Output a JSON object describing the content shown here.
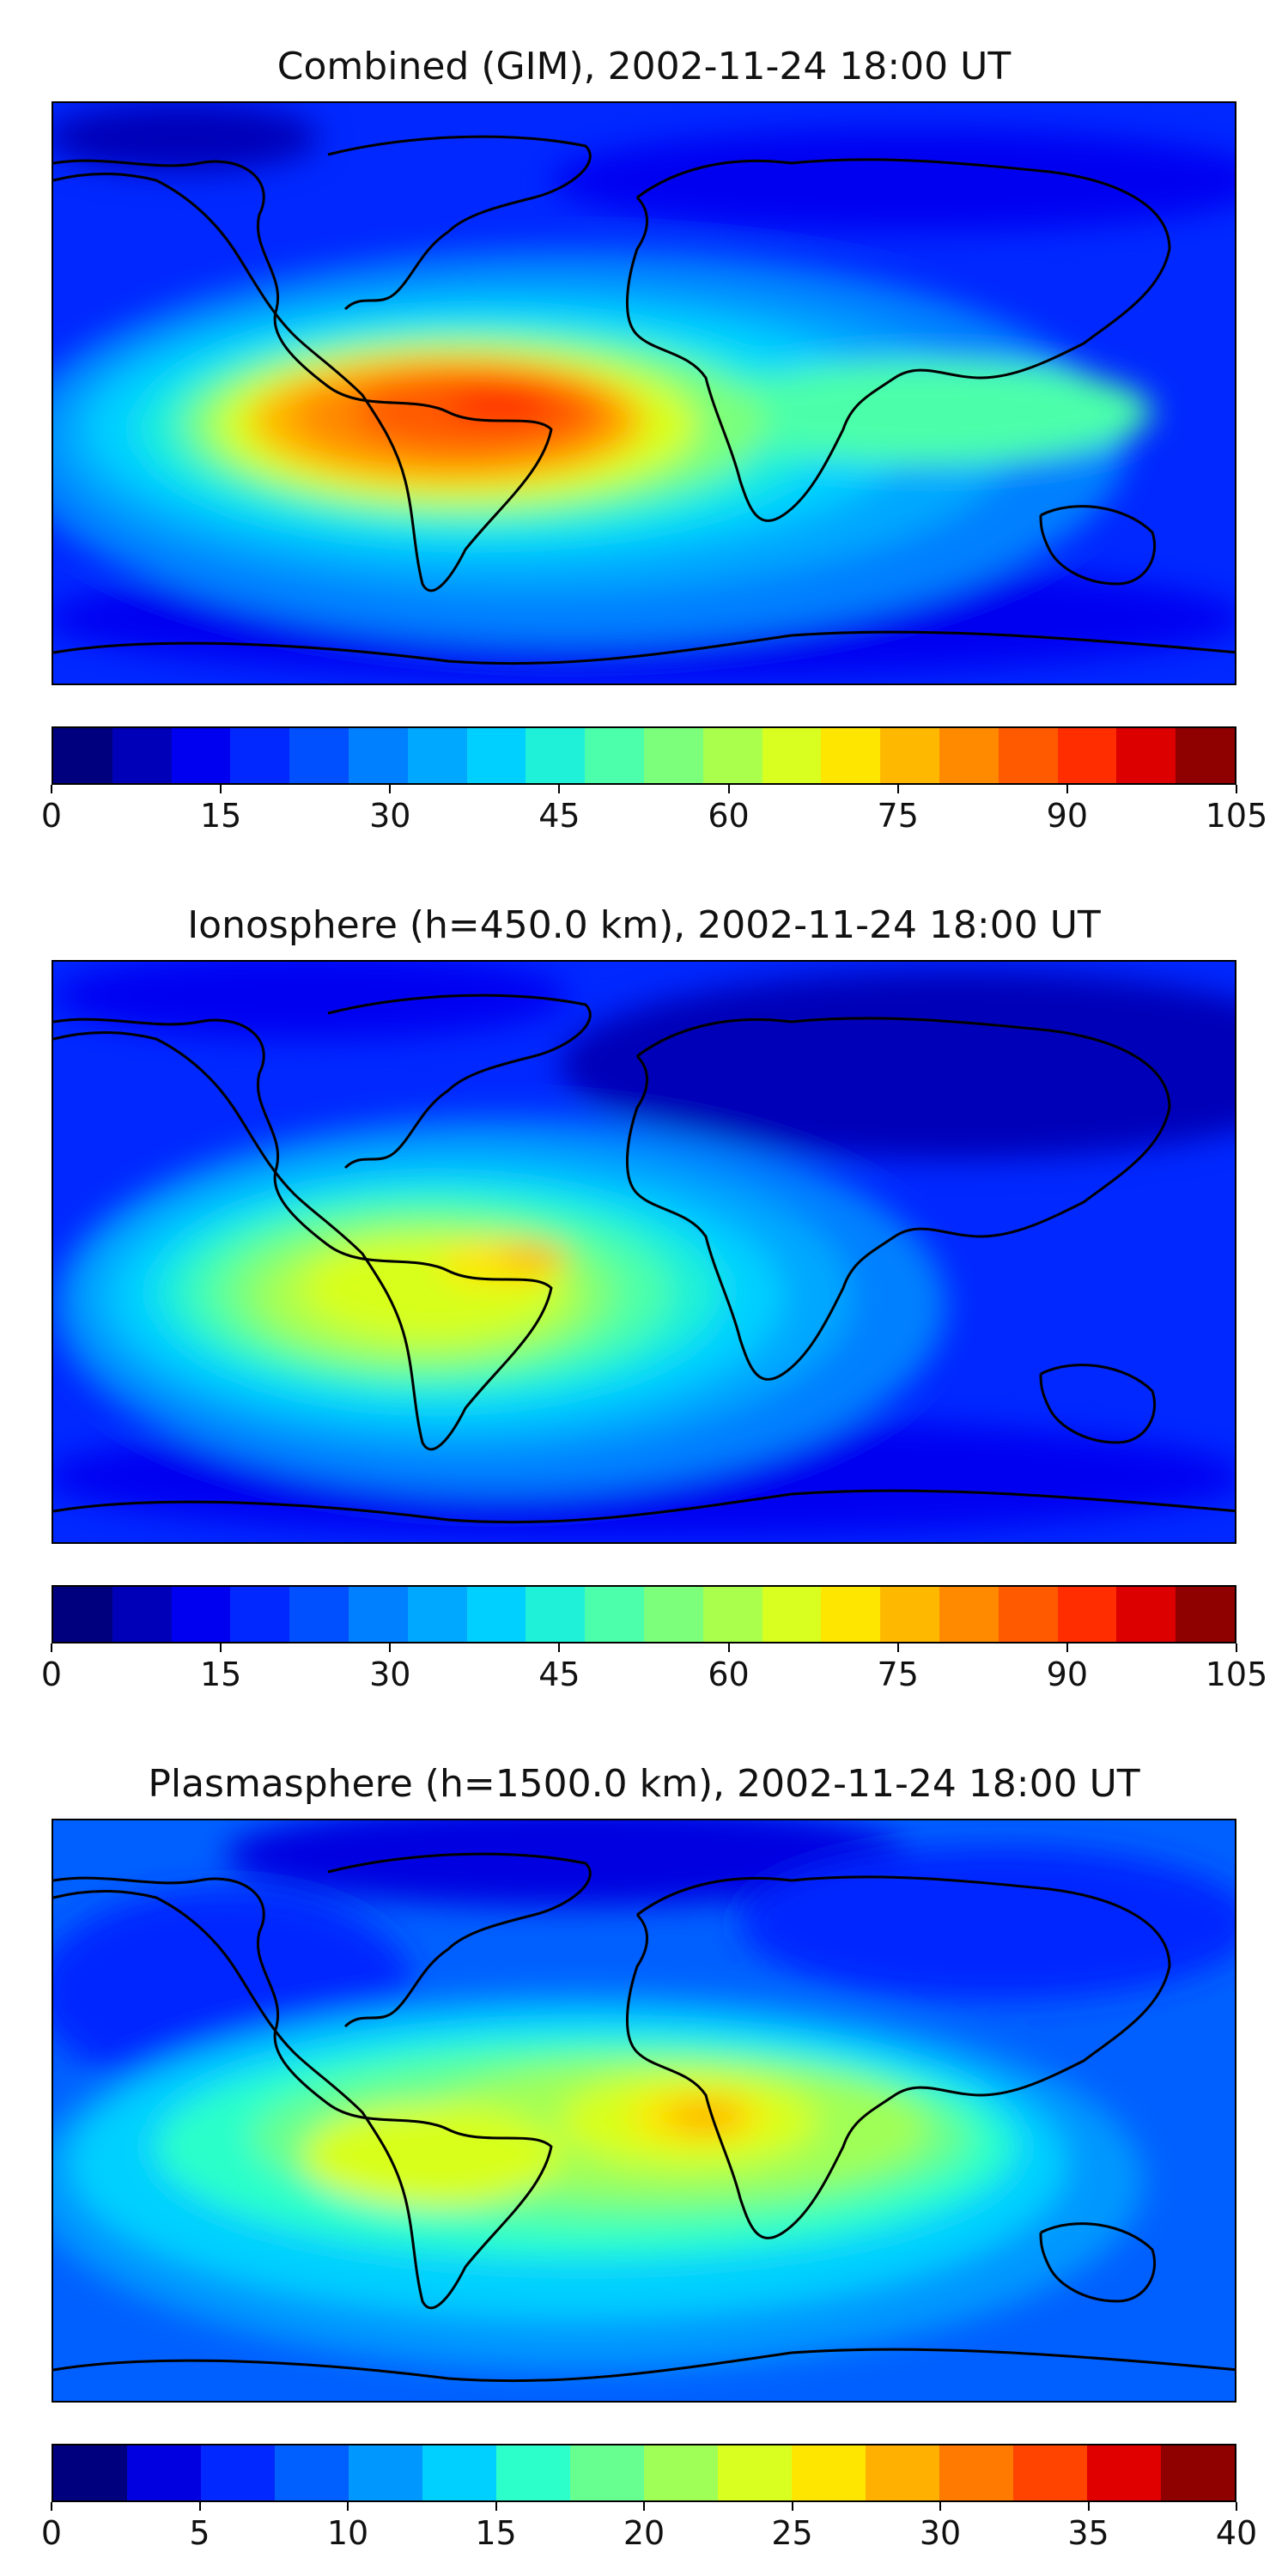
{
  "panels": [
    {
      "title": "Combined (GIM), 2002-11-24 18:00 UT",
      "colorbar": {
        "ticks": [
          "0",
          "15",
          "30",
          "45",
          "60",
          "75",
          "90",
          "105"
        ],
        "colors": [
          "#00007f",
          "#0000b8",
          "#0000f1",
          "#0028ff",
          "#0050ff",
          "#0080ff",
          "#00a8ff",
          "#00d0ff",
          "#1ff0d8",
          "#4cffaa",
          "#7cff7a",
          "#aaff4d",
          "#d8ff1f",
          "#ffe600",
          "#ffb800",
          "#ff8a00",
          "#ff5a00",
          "#ff2d00",
          "#dc0000",
          "#8f0000"
        ]
      },
      "hotspots": [
        {
          "name": "south-america-max",
          "color": "#ff5a00"
        },
        {
          "name": "west-africa-band",
          "color": "#7cff7a"
        },
        {
          "name": "indian-ocean-band",
          "color": "#1ff0d8"
        }
      ]
    },
    {
      "title": "Ionosphere  (h=450.0 km), 2002-11-24 18:00 UT",
      "colorbar": {
        "ticks": [
          "0",
          "15",
          "30",
          "45",
          "60",
          "75",
          "90",
          "105"
        ],
        "colors": [
          "#00007f",
          "#0000b8",
          "#0000f1",
          "#0028ff",
          "#0050ff",
          "#0080ff",
          "#00a8ff",
          "#00d0ff",
          "#1ff0d8",
          "#4cffaa",
          "#7cff7a",
          "#aaff4d",
          "#d8ff1f",
          "#ffe600",
          "#ffb800",
          "#ff8a00",
          "#ff5a00",
          "#ff2d00",
          "#dc0000",
          "#8f0000"
        ]
      },
      "hotspots": [
        {
          "name": "brazil-max",
          "color": "#ffb800"
        },
        {
          "name": "south-america-band",
          "color": "#d8ff1f"
        }
      ]
    },
    {
      "title": "Plasmasphere (h=1500.0 km), 2002-11-24 18:00 UT",
      "colorbar": {
        "ticks": [
          "0",
          "5",
          "10",
          "15",
          "20",
          "25",
          "30",
          "35",
          "40"
        ],
        "colors": [
          "#00007f",
          "#0000e0",
          "#0028ff",
          "#0060ff",
          "#0098ff",
          "#00d0ff",
          "#2cffca",
          "#66ff90",
          "#a0ff56",
          "#d8ff1f",
          "#ffe600",
          "#ffb000",
          "#ff7a00",
          "#ff4400",
          "#e00000",
          "#8f0000"
        ]
      },
      "hotspots": [
        {
          "name": "west-africa-max",
          "color": "#ffb000"
        },
        {
          "name": "south-america-band",
          "color": "#d8ff1f"
        }
      ]
    }
  ]
}
